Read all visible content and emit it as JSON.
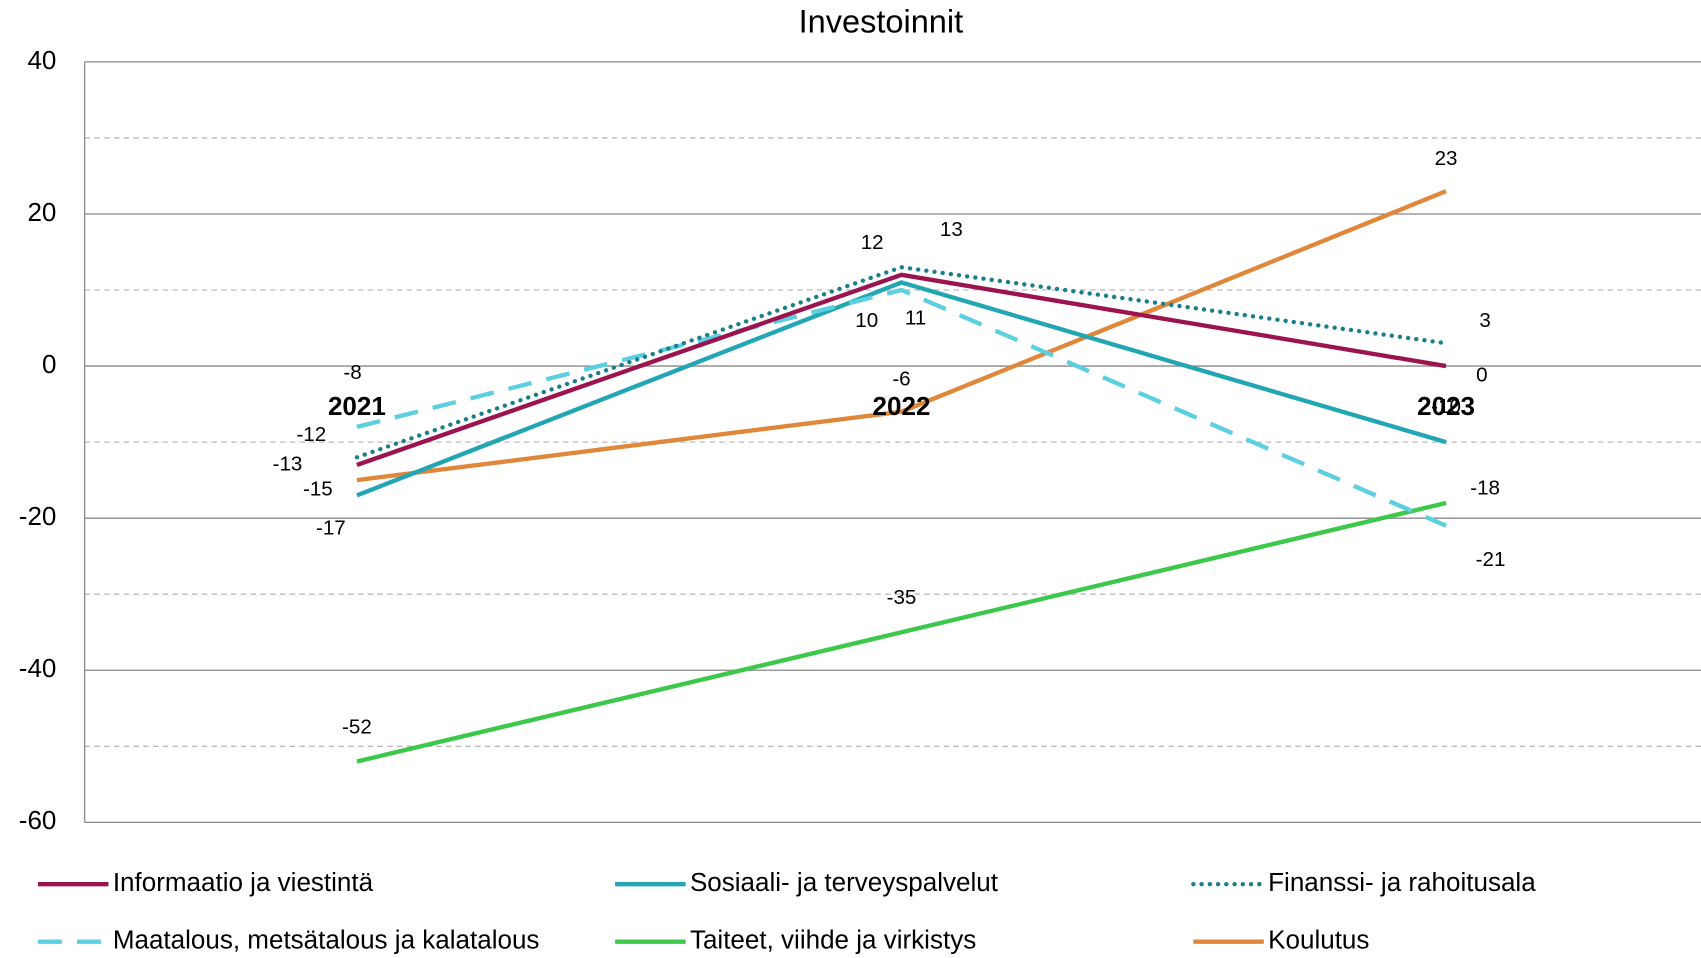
{
  "chart_data": {
    "type": "line",
    "title": "Investoinnit",
    "categories": [
      "2021",
      "2022",
      "2023"
    ],
    "series": [
      {
        "name": "Taiteet, viihde ja virkistys",
        "color": "#3cc84a",
        "style": "solid",
        "values": [
          -52,
          -35,
          -18
        ]
      },
      {
        "name": "Koulutus",
        "color": "#e0873a",
        "style": "solid",
        "values": [
          -15,
          -6,
          23
        ]
      },
      {
        "name": "Sosiaali- ja terveyspalvelut",
        "color": "#22a6b4",
        "style": "solid",
        "values": [
          -17,
          11,
          -10
        ]
      },
      {
        "name": "Maatalous, metsätalous ja kalatalous",
        "color": "#5ccfe0",
        "style": "dashed",
        "values": [
          -8,
          10,
          -21
        ]
      },
      {
        "name": "Finanssi- ja rahoitusala",
        "color": "#1a7f8a",
        "style": "dotted",
        "values": [
          -12,
          13,
          3
        ]
      },
      {
        "name": "Informaatio ja viestintä",
        "color": "#9b1450",
        "style": "solid",
        "values": [
          -13,
          12,
          0
        ]
      }
    ],
    "legend_order": [
      5,
      2,
      4,
      3,
      0,
      1
    ],
    "ylim": [
      -60,
      40
    ],
    "yticks": [
      -60,
      -40,
      -20,
      0,
      20,
      40
    ],
    "minor_yticks": [
      -50,
      -30,
      -10,
      10,
      30
    ],
    "grid": true
  }
}
